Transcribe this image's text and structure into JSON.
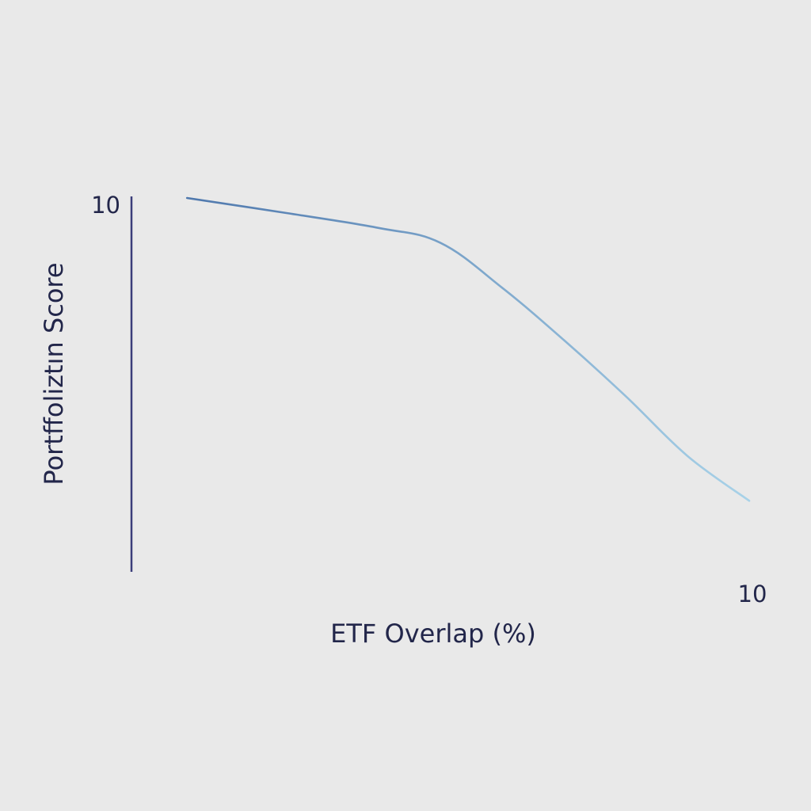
{
  "chart_data": {
    "type": "line",
    "title": "",
    "xlabel": "ETF Overlap (%)",
    "ylabel": "Portffoliztın Score",
    "xlim": [
      0,
      10
    ],
    "ylim": [
      0,
      10
    ],
    "x_tick_labels": [
      "10"
    ],
    "y_tick_labels": [
      "10"
    ],
    "grid": false,
    "legend": "none",
    "series": [
      {
        "x": [
          0.9,
          2.5,
          4.0,
          5.0,
          6.0,
          7.0,
          8.0,
          9.0,
          10.0
        ],
        "y": [
          10.0,
          9.6,
          9.2,
          8.8,
          7.6,
          6.2,
          4.7,
          3.1,
          1.9
        ]
      }
    ],
    "colors": {
      "axis_start": "#3b3d7a",
      "axis_end": "#a8cfe6",
      "line_start": "#4f78ad",
      "line_end": "#a8d2e8",
      "text": "#22264a"
    }
  }
}
